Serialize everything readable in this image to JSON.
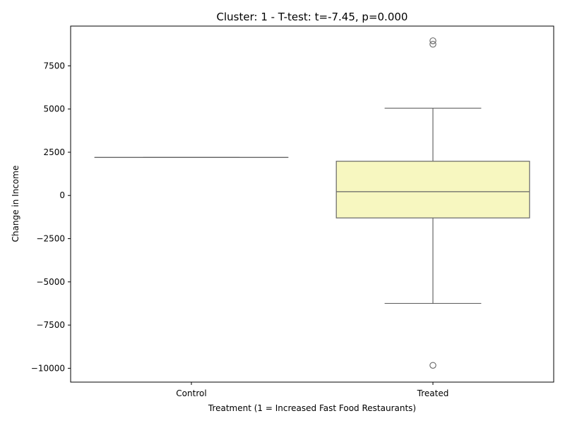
{
  "chart_data": {
    "type": "box",
    "title": "Cluster: 1 - T-test: t=-7.45, p=0.000",
    "xlabel": "Treatment (1 = Increased Fast Food Restaurants)",
    "ylabel": "Change in Income",
    "categories": [
      "Control",
      "Treated"
    ],
    "ylim": [
      -10800,
      9800
    ],
    "yticks": [
      -10000,
      -7500,
      -5000,
      -2500,
      0,
      2500,
      5000,
      7500
    ],
    "ytick_labels": [
      "−10000",
      "−7500",
      "−5000",
      "−2500",
      "0",
      "2500",
      "5000",
      "7500"
    ],
    "grid": false,
    "boxes": [
      {
        "category": "Control",
        "whisker_low": 2200,
        "q1": 2200,
        "median": 2200,
        "q3": 2200,
        "whisker_high": 2200,
        "outliers": [],
        "color": "#f7f7c0"
      },
      {
        "category": "Treated",
        "whisker_low": -6250,
        "q1": -1300,
        "median": 220,
        "q3": 1980,
        "whisker_high": 5050,
        "outliers": [
          8950,
          8750,
          -9830
        ],
        "color": "#f7f7c0"
      }
    ],
    "line_color": "#666666"
  }
}
